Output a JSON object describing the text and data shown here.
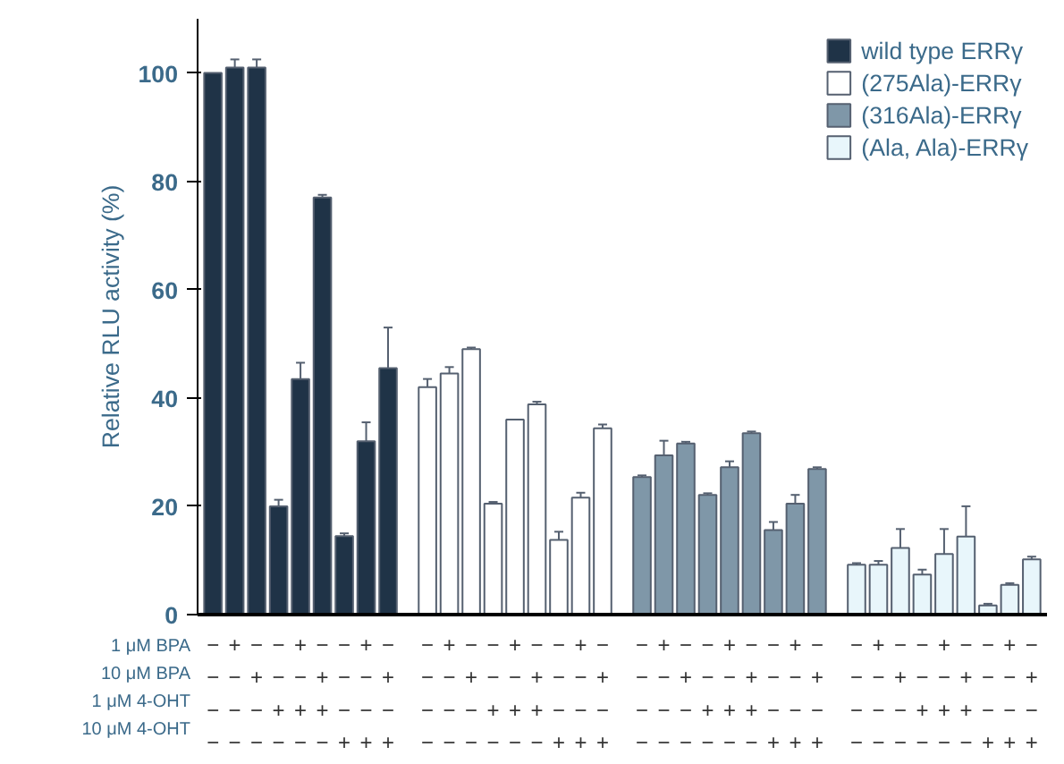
{
  "chart_data": {
    "type": "bar",
    "ylabel": "Relative RLU activity (%)",
    "categories": [
      "−\n−\n−\n−",
      "+\n−\n−\n−",
      "−\n+\n−\n−",
      "−\n−\n+\n−",
      "+\n−\n+\n−",
      "−\n+\n+\n−",
      "−\n−\n−\n+",
      "+\n−\n−\n+",
      "−\n+\n−\n+",
      "−\n−\n−\n−",
      "+\n−\n−\n−",
      "−\n+\n−\n−",
      "−\n−\n+\n−",
      "+\n−\n+\n−",
      "−\n+\n+\n−",
      "−\n−\n−\n+",
      "+\n−\n−\n+",
      "−\n+\n−\n+",
      "−\n−\n−\n−",
      "+\n−\n−\n−",
      "−\n+\n−\n−",
      "−\n−\n+\n−",
      "+\n−\n+\n−",
      "−\n+\n+\n−",
      "−\n−\n−\n+",
      "+\n−\n−\n+",
      "−\n+\n−\n+",
      "−\n−\n−\n−",
      "+\n−\n−\n−",
      "−\n+\n−\n−",
      "−\n−\n+\n−",
      "+\n−\n+\n−",
      "−\n+\n+\n−",
      "−\n−\n−\n+",
      "+\n−\n−\n+",
      "−\n+\n−\n+"
    ],
    "series": [
      {
        "name": "wild type ERRγ",
        "color": "#1f3347",
        "values": [
          100,
          101,
          101,
          20,
          43.5,
          77,
          14.5,
          32,
          45.5,
          null,
          null,
          null,
          null,
          null,
          null,
          null,
          null,
          null,
          null,
          null,
          null,
          null,
          null,
          null,
          null,
          null,
          null,
          null,
          null,
          null,
          null,
          null,
          null,
          null,
          null,
          null
        ],
        "errors": [
          null,
          1.5,
          1.5,
          1.2,
          3,
          0.5,
          0.5,
          3.5,
          7.5,
          null,
          null,
          null,
          null,
          null,
          null,
          null,
          null,
          null,
          null,
          null,
          null,
          null,
          null,
          null,
          null,
          null,
          null,
          null,
          null,
          null,
          null,
          null,
          null,
          null,
          null,
          null
        ]
      },
      {
        "name": "(275Ala)-ERRγ",
        "color": "#ffffff",
        "values": [
          null,
          null,
          null,
          null,
          null,
          null,
          null,
          null,
          null,
          42,
          44.5,
          49,
          20.5,
          36,
          38.8,
          13.8,
          21.6,
          34.4,
          null,
          null,
          null,
          null,
          null,
          null,
          null,
          null,
          null,
          null,
          null,
          null,
          null,
          null,
          null,
          null,
          null,
          null
        ],
        "errors": [
          null,
          null,
          null,
          null,
          null,
          null,
          null,
          null,
          null,
          1.5,
          1.2,
          0.3,
          0.3,
          null,
          0.5,
          1.5,
          0.9,
          0.7,
          null,
          null,
          null,
          null,
          null,
          null,
          null,
          null,
          null,
          null,
          null,
          null,
          null,
          null,
          null,
          null,
          null,
          null
        ]
      },
      {
        "name": "(316Ala)-ERRγ",
        "color": "#7f97a8",
        "values": [
          null,
          null,
          null,
          null,
          null,
          null,
          null,
          null,
          null,
          null,
          null,
          null,
          null,
          null,
          null,
          null,
          null,
          null,
          25.4,
          29.4,
          31.6,
          22.1,
          27.2,
          33.5,
          15.6,
          20.5,
          26.9,
          null,
          null,
          null,
          null,
          null,
          null,
          null,
          null,
          null
        ],
        "errors": [
          null,
          null,
          null,
          null,
          null,
          null,
          null,
          null,
          null,
          null,
          null,
          null,
          null,
          null,
          null,
          null,
          null,
          null,
          0.3,
          2.7,
          0.3,
          0.3,
          1.1,
          0.3,
          1.5,
          1.6,
          0.3,
          null,
          null,
          null,
          null,
          null,
          null,
          null,
          null,
          null
        ]
      },
      {
        "name": "(Ala, Ala)-ERRγ",
        "color": "#e8f6fb",
        "values": [
          null,
          null,
          null,
          null,
          null,
          null,
          null,
          null,
          null,
          null,
          null,
          null,
          null,
          null,
          null,
          null,
          null,
          null,
          null,
          null,
          null,
          null,
          null,
          null,
          null,
          null,
          null,
          9.2,
          9.2,
          12.3,
          7.4,
          11.2,
          14.4,
          1.7,
          5.5,
          10.2
        ],
        "errors": [
          null,
          null,
          null,
          null,
          null,
          null,
          null,
          null,
          null,
          null,
          null,
          null,
          null,
          null,
          null,
          null,
          null,
          null,
          null,
          null,
          null,
          null,
          null,
          null,
          null,
          null,
          null,
          0.3,
          0.7,
          3.5,
          0.9,
          4.6,
          5.6,
          0.3,
          0.3,
          0.5
        ]
      }
    ],
    "ylim": [
      0,
      110
    ],
    "yticks": [
      0,
      20,
      40,
      60,
      80,
      100
    ],
    "grid": false,
    "legend": "top right",
    "annotations": [
      "1 μM BPA",
      "10 μM BPA",
      "1 μM 4-OHT",
      "10 μM 4-OHT"
    ]
  }
}
